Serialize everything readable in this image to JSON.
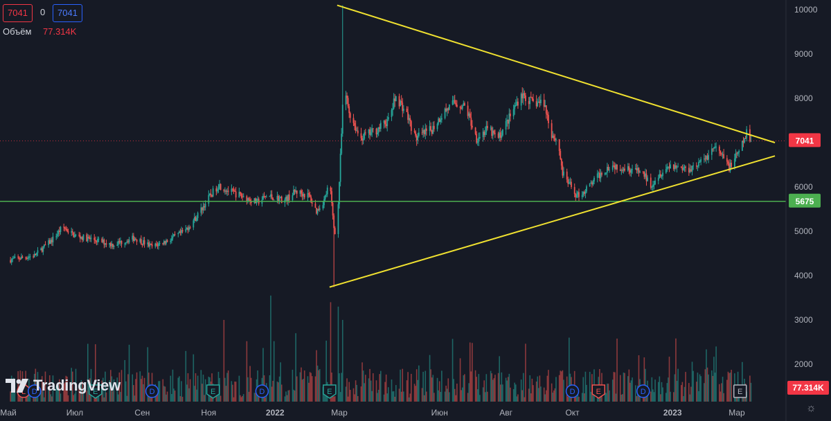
{
  "hud": {
    "price_left": "7041",
    "change": "0",
    "price_right": "7041",
    "volume_label": "Объём",
    "volume_value": "77.314K"
  },
  "branding": {
    "logo_text": "TradingView"
  },
  "axis": {
    "price_ticks": [
      "10000",
      "9000",
      "8000",
      "7000",
      "6000",
      "5000",
      "4000",
      "3000",
      "2000"
    ],
    "time_ticks": [
      "Май",
      "Июл",
      "Сен",
      "Ноя",
      "2022",
      "Мар",
      "Июн",
      "Авг",
      "Окт",
      "2023",
      "Мар"
    ]
  },
  "badges": {
    "last_price": "7041",
    "support_level": "5675",
    "volume": "77.314K"
  },
  "colors": {
    "up": "#26a69a",
    "down": "#ef5350",
    "trendline": "#f0e130",
    "support": "#4caf50",
    "price_line": "#f23645",
    "background": "#161a25"
  },
  "event_markers": [
    {
      "letter": "L",
      "kind": "L",
      "date": "2021-05-15"
    },
    {
      "letter": "D",
      "kind": "D",
      "date": "2021-05-25"
    },
    {
      "letter": "E",
      "kind": "E",
      "date": "2021-07-20"
    },
    {
      "letter": "D",
      "kind": "D",
      "date": "2021-09-10"
    },
    {
      "letter": "E",
      "kind": "E",
      "date": "2021-11-05"
    },
    {
      "letter": "D",
      "kind": "D",
      "date": "2021-12-20"
    },
    {
      "letter": "E",
      "kind": "E",
      "date": "2022-02-20"
    },
    {
      "letter": "D",
      "kind": "D",
      "date": "2022-10-01"
    },
    {
      "letter": "E",
      "kind": "Ered",
      "date": "2022-10-25"
    },
    {
      "letter": "D",
      "kind": "D",
      "date": "2022-12-05"
    },
    {
      "letter": "E",
      "kind": "Egray",
      "date": "2023-03-04"
    }
  ],
  "chart_data": {
    "type": "candlestick",
    "symbol_timeframe": "1D",
    "ylim": [
      3500,
      10200
    ],
    "volume_ylim": [
      0,
      3500
    ],
    "x_range": [
      "2021-05-01",
      "2023-05-01"
    ],
    "support_level": 5675,
    "last_price": 7041,
    "trendlines": [
      {
        "name": "upper",
        "points": [
          [
            "2022-02-27",
            10100
          ],
          [
            "2023-04-05",
            7000
          ]
        ]
      },
      {
        "name": "lower",
        "points": [
          [
            "2022-02-20",
            3740
          ],
          [
            "2023-04-05",
            6700
          ]
        ]
      }
    ],
    "price_path": [
      [
        "2021-05-01",
        4350
      ],
      [
        "2021-05-25",
        4450
      ],
      [
        "2021-06-10",
        4800
      ],
      [
        "2021-06-20",
        5100
      ],
      [
        "2021-07-01",
        4900
      ],
      [
        "2021-07-20",
        4800
      ],
      [
        "2021-08-05",
        4700
      ],
      [
        "2021-08-25",
        4850
      ],
      [
        "2021-09-10",
        4650
      ],
      [
        "2021-09-25",
        4800
      ],
      [
        "2021-10-10",
        5000
      ],
      [
        "2021-10-20",
        5300
      ],
      [
        "2021-11-01",
        5750
      ],
      [
        "2021-11-10",
        6050
      ],
      [
        "2021-11-20",
        5900
      ],
      [
        "2021-12-01",
        5800
      ],
      [
        "2021-12-15",
        5650
      ],
      [
        "2021-12-25",
        5800
      ],
      [
        "2022-01-10",
        5700
      ],
      [
        "2022-01-20",
        5900
      ],
      [
        "2022-02-01",
        5800
      ],
      [
        "2022-02-08",
        5450
      ],
      [
        "2022-02-15",
        5700
      ],
      [
        "2022-02-20",
        6100
      ],
      [
        "2022-02-24",
        5100
      ],
      [
        "2022-02-26",
        4900
      ],
      [
        "2022-02-28",
        5600
      ],
      [
        "2022-03-03",
        7200
      ],
      [
        "2022-03-05",
        8300
      ],
      [
        "2022-03-10",
        7700
      ],
      [
        "2022-03-20",
        7100
      ],
      [
        "2022-04-05",
        7300
      ],
      [
        "2022-04-15",
        7500
      ],
      [
        "2022-04-22",
        8050
      ],
      [
        "2022-05-01",
        7700
      ],
      [
        "2022-05-10",
        7100
      ],
      [
        "2022-05-25",
        7300
      ],
      [
        "2022-06-05",
        7700
      ],
      [
        "2022-06-15",
        7900
      ],
      [
        "2022-06-25",
        7800
      ],
      [
        "2022-07-05",
        7100
      ],
      [
        "2022-07-15",
        7300
      ],
      [
        "2022-07-25",
        7100
      ],
      [
        "2022-08-05",
        7600
      ],
      [
        "2022-08-15",
        8100
      ],
      [
        "2022-08-25",
        7900
      ],
      [
        "2022-09-05",
        7900
      ],
      [
        "2022-09-12",
        7200
      ],
      [
        "2022-09-18",
        7000
      ],
      [
        "2022-09-22",
        6300
      ],
      [
        "2022-10-05",
        5800
      ],
      [
        "2022-10-12",
        5900
      ],
      [
        "2022-10-25",
        6250
      ],
      [
        "2022-11-05",
        6500
      ],
      [
        "2022-11-15",
        6450
      ],
      [
        "2022-11-25",
        6400
      ],
      [
        "2022-12-05",
        6300
      ],
      [
        "2022-12-12",
        6050
      ],
      [
        "2022-12-20",
        6300
      ],
      [
        "2022-12-30",
        6500
      ],
      [
        "2023-01-15",
        6400
      ],
      [
        "2023-01-30",
        6600
      ],
      [
        "2023-02-08",
        6900
      ],
      [
        "2023-02-15",
        6700
      ],
      [
        "2023-02-22",
        6450
      ],
      [
        "2023-03-01",
        6700
      ],
      [
        "2023-03-05",
        6900
      ],
      [
        "2023-03-10",
        7200
      ],
      [
        "2023-03-14",
        7041
      ]
    ],
    "volume_spikes": [
      [
        "2021-12-28",
        3550
      ],
      [
        "2022-02-21",
        3400
      ],
      [
        "2022-02-28",
        3300
      ],
      [
        "2021-11-15",
        3000
      ],
      [
        "2022-03-04",
        3000
      ],
      [
        "2023-03-04",
        3300
      ],
      [
        "2022-10-22",
        2650
      ],
      [
        "2022-09-28",
        2600
      ],
      [
        "2022-01-20",
        2700
      ],
      [
        "2023-03-06",
        2050
      ],
      [
        "2021-12-05",
        2500
      ],
      [
        "2022-07-10",
        2400
      ]
    ]
  }
}
